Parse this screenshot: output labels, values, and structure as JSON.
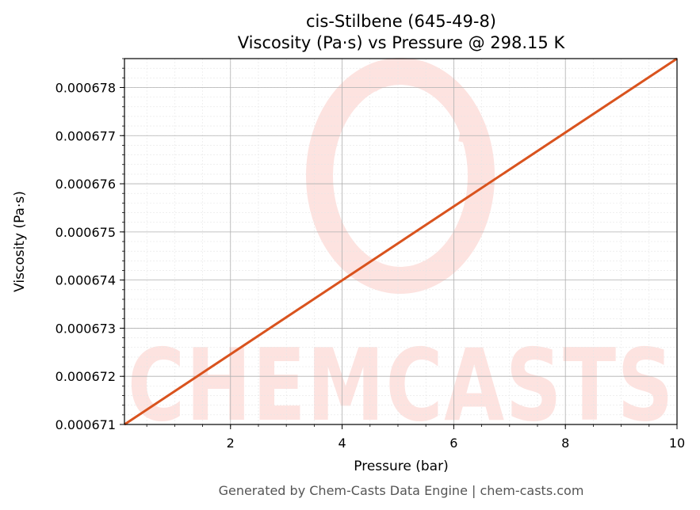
{
  "chart_data": {
    "type": "line",
    "title": "cis-Stilbene (645-49-8)",
    "subtitle": "Viscosity (Pa·s) vs Pressure @ 298.15 K",
    "xlabel": "Pressure (bar)",
    "ylabel": "Viscosity (Pa·s)",
    "xlim": [
      0.1,
      10
    ],
    "ylim": [
      0.000671,
      0.0006786
    ],
    "x_ticks": [
      2,
      4,
      6,
      8,
      10
    ],
    "y_ticks": [
      0.000671,
      0.000672,
      0.000673,
      0.000674,
      0.000675,
      0.000676,
      0.000677,
      0.000678
    ],
    "x_tick_labels": [
      "2",
      "4",
      "6",
      "8",
      "10"
    ],
    "y_tick_labels": [
      "0.000671",
      "0.000672",
      "0.000673",
      "0.000674",
      "0.000675",
      "0.000676",
      "0.000677",
      "0.000678"
    ],
    "grid": true,
    "series": [
      {
        "color": "#d9531e",
        "x": [
          0.1,
          10
        ],
        "y": [
          0.000671,
          0.0006786
        ]
      }
    ]
  },
  "watermark": {
    "text": "CHEMCASTS",
    "color": "#fde3e0"
  },
  "footer": "Generated by Chem-Casts Data Engine | chem-casts.com"
}
